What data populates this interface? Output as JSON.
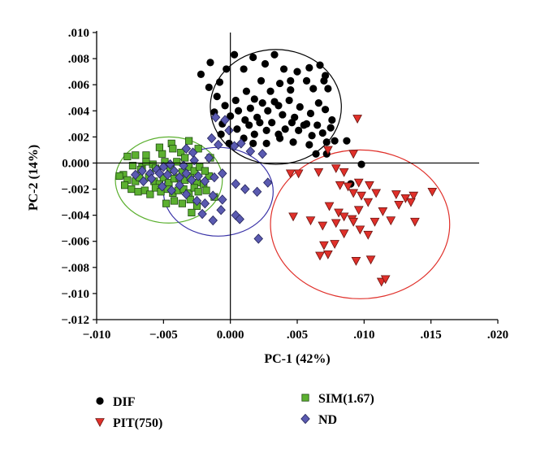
{
  "chart_data": {
    "type": "scatter",
    "xlabel": "PC-1 (42%)",
    "ylabel": "PC-2 (14%)",
    "xlim": [
      -0.01,
      0.02
    ],
    "ylim": [
      -0.012,
      0.01
    ],
    "x_ticks": [
      -0.01,
      -0.005,
      0.0,
      0.005,
      0.01,
      0.015,
      0.02
    ],
    "x_tick_labels": [
      "−.010",
      "−.005",
      "0.000",
      ".005",
      ".010",
      ".015",
      ".020"
    ],
    "y_ticks": [
      0.01,
      0.008,
      0.006,
      0.004,
      0.002,
      0.0,
      -0.002,
      -0.004,
      -0.006,
      -0.008,
      -0.01,
      -0.012
    ],
    "y_tick_labels": [
      ".010",
      ".008",
      ".006",
      ".004",
      ".002",
      "0.000",
      "−.002",
      "−.004",
      "−.006",
      "−.008",
      "−.010",
      "−.012"
    ],
    "grid": false,
    "legend": "bottom",
    "series": [
      {
        "name": "DIF",
        "marker": "circle",
        "color": "#000000",
        "points": [
          [
            -0.0022,
            0.0068
          ],
          [
            -0.0015,
            0.0077
          ],
          [
            -0.0008,
            0.0062
          ],
          [
            -0.0003,
            0.0072
          ],
          [
            0.0003,
            0.0083
          ],
          [
            0.001,
            0.0072
          ],
          [
            0.0017,
            0.0081
          ],
          [
            0.0026,
            0.0076
          ],
          [
            0.0033,
            0.0083
          ],
          [
            0.004,
            0.0072
          ],
          [
            0.0045,
            0.0063
          ],
          [
            0.005,
            0.007
          ],
          [
            0.0059,
            0.0073
          ],
          [
            0.0067,
            0.0075
          ],
          [
            0.0071,
            0.0067
          ],
          [
            -0.0016,
            0.0058
          ],
          [
            -0.001,
            0.0051
          ],
          [
            -0.0004,
            0.0044
          ],
          [
            0.0004,
            0.0048
          ],
          [
            0.0012,
            0.0055
          ],
          [
            0.0018,
            0.0049
          ],
          [
            0.0023,
            0.0063
          ],
          [
            0.003,
            0.0055
          ],
          [
            0.0037,
            0.0061
          ],
          [
            0.0045,
            0.0056
          ],
          [
            0.0057,
            0.0063
          ],
          [
            0.0062,
            0.0057
          ],
          [
            0.007,
            0.0063
          ],
          [
            0.0073,
            0.0057
          ],
          [
            -0.0012,
            0.0039
          ],
          [
            -0.0006,
            0.003
          ],
          [
            0.0,
            0.0036
          ],
          [
            0.0006,
            0.004
          ],
          [
            0.0011,
            0.0033
          ],
          [
            0.0015,
            0.0042
          ],
          [
            0.002,
            0.0035
          ],
          [
            0.0024,
            0.0046
          ],
          [
            0.0028,
            0.004
          ],
          [
            0.0033,
            0.0047
          ],
          [
            0.0036,
            0.0044
          ],
          [
            0.0039,
            0.0037
          ],
          [
            0.0044,
            0.0048
          ],
          [
            0.0048,
            0.0035
          ],
          [
            0.0052,
            0.0043
          ],
          [
            0.0055,
            0.0029
          ],
          [
            0.006,
            0.0038
          ],
          [
            0.0066,
            0.0046
          ],
          [
            0.0071,
            0.0041
          ],
          [
            0.0076,
            0.0033
          ],
          [
            -0.0007,
            0.0022
          ],
          [
            -0.0001,
            0.0015
          ],
          [
            0.0005,
            0.0026
          ],
          [
            0.001,
            0.0019
          ],
          [
            0.0014,
            0.0029
          ],
          [
            0.0018,
            0.0022
          ],
          [
            0.0022,
            0.0031
          ],
          [
            0.0027,
            0.0025
          ],
          [
            0.0031,
            0.0031
          ],
          [
            0.0036,
            0.0022
          ],
          [
            0.0041,
            0.0026
          ],
          [
            0.0046,
            0.0031
          ],
          [
            0.0051,
            0.0025
          ],
          [
            0.0057,
            0.003
          ],
          [
            0.0061,
            0.0021
          ],
          [
            0.0065,
            0.0029
          ],
          [
            0.0069,
            0.0023
          ],
          [
            0.0075,
            0.0027
          ],
          [
            0.0017,
            0.0015
          ],
          [
            0.0027,
            0.0015
          ],
          [
            0.0037,
            0.0019
          ],
          [
            0.0047,
            0.0016
          ],
          [
            0.0059,
            0.0014
          ],
          [
            0.0072,
            0.0016
          ],
          [
            0.0078,
            0.0017
          ],
          [
            0.0087,
            0.0017
          ],
          [
            0.0064,
            0.0007
          ],
          [
            0.0072,
            0.0007
          ],
          [
            0.009,
            -0.0016
          ],
          [
            0.0098,
            -0.0001
          ]
        ]
      },
      {
        "name": "PIT(750)",
        "marker": "triangle-down",
        "color": "#e0302a",
        "points": [
          [
            0.0095,
            0.0034
          ],
          [
            0.0073,
            0.001
          ],
          [
            0.0045,
            -0.0008
          ],
          [
            0.0051,
            -0.0008
          ],
          [
            0.0066,
            -0.0007
          ],
          [
            0.0079,
            -0.0004
          ],
          [
            0.0085,
            -0.0007
          ],
          [
            0.0092,
            0.0007
          ],
          [
            0.0096,
            -0.0015
          ],
          [
            0.0082,
            -0.0017
          ],
          [
            0.0088,
            -0.0018
          ],
          [
            0.0092,
            -0.0023
          ],
          [
            0.0098,
            -0.0025
          ],
          [
            0.0104,
            -0.0017
          ],
          [
            0.0109,
            -0.0023
          ],
          [
            0.0124,
            -0.0024
          ],
          [
            0.0131,
            -0.0027
          ],
          [
            0.0137,
            -0.0025
          ],
          [
            0.0151,
            -0.0022
          ],
          [
            0.0135,
            -0.003
          ],
          [
            0.0126,
            -0.0032
          ],
          [
            0.0074,
            -0.0033
          ],
          [
            0.0081,
            -0.0038
          ],
          [
            0.0085,
            -0.0041
          ],
          [
            0.0091,
            -0.0043
          ],
          [
            0.0096,
            -0.0036
          ],
          [
            0.0103,
            -0.003
          ],
          [
            0.0108,
            -0.0045
          ],
          [
            0.012,
            -0.0044
          ],
          [
            0.0138,
            -0.0045
          ],
          [
            0.0114,
            -0.0037
          ],
          [
            0.006,
            -0.0044
          ],
          [
            0.0069,
            -0.0048
          ],
          [
            0.0079,
            -0.0046
          ],
          [
            0.0085,
            -0.0054
          ],
          [
            0.0092,
            -0.0045
          ],
          [
            0.0097,
            -0.0051
          ],
          [
            0.0103,
            -0.0055
          ],
          [
            0.0047,
            -0.0041
          ],
          [
            0.007,
            -0.0063
          ],
          [
            0.0078,
            -0.0062
          ],
          [
            0.0067,
            -0.0071
          ],
          [
            0.0073,
            -0.007
          ],
          [
            0.0094,
            -0.0075
          ],
          [
            0.0105,
            -0.0074
          ],
          [
            0.0113,
            -0.0091
          ],
          [
            0.0116,
            -0.0089
          ]
        ]
      },
      {
        "name": "SIM(1.67)",
        "marker": "square",
        "color": "#5cb030",
        "points": [
          [
            -0.0031,
            0.0017
          ],
          [
            -0.0044,
            0.0015
          ],
          [
            -0.0037,
            0.0008
          ],
          [
            -0.0051,
            0.0007
          ],
          [
            -0.0063,
            0.0006
          ],
          [
            -0.0071,
            0.0006
          ],
          [
            -0.0077,
            0.0005
          ],
          [
            -0.0058,
            -0.0001
          ],
          [
            -0.0066,
            -0.0003
          ],
          [
            -0.0073,
            -0.0002
          ],
          [
            -0.008,
            -0.0009
          ],
          [
            -0.0083,
            -0.001
          ],
          [
            -0.0077,
            -0.0013
          ],
          [
            -0.0071,
            -0.0014
          ],
          [
            -0.0068,
            -0.0011
          ],
          [
            -0.0061,
            -0.0011
          ],
          [
            -0.0057,
            -0.0014
          ],
          [
            -0.0053,
            -0.0016
          ],
          [
            -0.005,
            -0.0011
          ],
          [
            -0.0046,
            -0.0015
          ],
          [
            -0.0042,
            -0.0012
          ],
          [
            -0.0038,
            -0.0011
          ],
          [
            -0.0034,
            -0.0013
          ],
          [
            -0.003,
            -0.0011
          ],
          [
            -0.0025,
            -0.0015
          ],
          [
            -0.002,
            -0.0016
          ],
          [
            -0.0016,
            -0.001
          ],
          [
            -0.0079,
            -0.0017
          ],
          [
            -0.0074,
            -0.002
          ],
          [
            -0.0069,
            -0.0022
          ],
          [
            -0.0064,
            -0.0021
          ],
          [
            -0.006,
            -0.0024
          ],
          [
            -0.0056,
            -0.0019
          ],
          [
            -0.0052,
            -0.0022
          ],
          [
            -0.0047,
            -0.002
          ],
          [
            -0.0043,
            -0.0023
          ],
          [
            -0.0039,
            -0.0021
          ],
          [
            -0.0035,
            -0.002
          ],
          [
            -0.0031,
            -0.0023
          ],
          [
            -0.0027,
            -0.0019
          ],
          [
            -0.0024,
            -0.0022
          ],
          [
            -0.0063,
            0.0001
          ],
          [
            -0.0056,
            -0.0004
          ],
          [
            -0.0049,
            0.0001
          ],
          [
            -0.0045,
            -0.0005
          ],
          [
            -0.004,
            0.0001
          ],
          [
            -0.0036,
            -0.0007
          ],
          [
            -0.0031,
            -0.0003
          ],
          [
            -0.0027,
            -0.0006
          ],
          [
            -0.0023,
            -0.0003
          ],
          [
            -0.0019,
            -0.0006
          ],
          [
            -0.0015,
            0.0004
          ],
          [
            -0.0048,
            -0.0031
          ],
          [
            -0.0042,
            -0.0029
          ],
          [
            -0.0036,
            -0.0031
          ],
          [
            -0.003,
            -0.0028
          ],
          [
            -0.0025,
            -0.0033
          ],
          [
            -0.0012,
            -0.0026
          ],
          [
            -0.0018,
            -0.0021
          ],
          [
            -0.0029,
            -0.0038
          ],
          [
            -0.0053,
            0.0012
          ],
          [
            -0.0043,
            0.0011
          ],
          [
            -0.0034,
            0.0004
          ],
          [
            -0.0067,
            -0.0005
          ],
          [
            -0.0024,
            0.0011
          ]
        ]
      },
      {
        "name": "ND",
        "marker": "diamond",
        "color": "#5a5ab0",
        "points": [
          [
            -0.0011,
            0.0035
          ],
          [
            -0.0004,
            0.0033
          ],
          [
            -0.0001,
            0.0025
          ],
          [
            -0.0014,
            0.0019
          ],
          [
            -0.0009,
            0.0014
          ],
          [
            0.0003,
            0.0013
          ],
          [
            0.0008,
            0.0015
          ],
          [
            0.0015,
            0.0009
          ],
          [
            0.0024,
            0.0007
          ],
          [
            0.0028,
            -0.0015
          ],
          [
            0.002,
            -0.0022
          ],
          [
            -0.0028,
            0.0008
          ],
          [
            -0.0033,
            0.0011
          ],
          [
            -0.0045,
            -0.0001
          ],
          [
            -0.005,
            -0.0003
          ],
          [
            -0.0055,
            -0.0005
          ],
          [
            -0.006,
            -0.0008
          ],
          [
            -0.0066,
            -0.0006
          ],
          [
            -0.0071,
            -0.0009
          ],
          [
            -0.0065,
            -0.0014
          ],
          [
            -0.0059,
            -0.0012
          ],
          [
            -0.0053,
            -0.0008
          ],
          [
            -0.0047,
            -0.0009
          ],
          [
            -0.0042,
            -0.0006
          ],
          [
            -0.0038,
            -0.0011
          ],
          [
            -0.0033,
            -0.0008
          ],
          [
            -0.0029,
            -0.0013
          ],
          [
            -0.0024,
            -0.001
          ],
          [
            -0.0019,
            -0.0014
          ],
          [
            -0.0012,
            -0.0011
          ],
          [
            -0.0006,
            -0.0008
          ],
          [
            0.0004,
            -0.0016
          ],
          [
            0.0011,
            -0.002
          ],
          [
            -0.0013,
            -0.0025
          ],
          [
            -0.0006,
            -0.0028
          ],
          [
            -0.0019,
            -0.0031
          ],
          [
            -0.0025,
            -0.0029
          ],
          [
            -0.0007,
            -0.0036
          ],
          [
            -0.0013,
            -0.0044
          ],
          [
            0.0004,
            -0.004
          ],
          [
            0.0007,
            -0.0043
          ],
          [
            -0.0021,
            -0.0039
          ],
          [
            0.0021,
            -0.0058
          ],
          [
            -0.0038,
            -0.0017
          ],
          [
            -0.0044,
            -0.0021
          ],
          [
            -0.0051,
            -0.0018
          ],
          [
            -0.0033,
            -0.0024
          ],
          [
            -0.0027,
            0.0002
          ],
          [
            -0.0035,
            -0.0002
          ],
          [
            -0.0016,
            0.0004
          ]
        ]
      }
    ],
    "ellipses": [
      {
        "group": "DIF",
        "color": "#000000",
        "center": [
          0.0034,
          0.0043
        ],
        "radii": [
          0.0049,
          0.0044
        ]
      },
      {
        "group": "PIT(750)",
        "color": "#e0302a",
        "center": [
          0.0097,
          -0.0047
        ],
        "radii": [
          0.0067,
          0.0057
        ]
      },
      {
        "group": "SIM(1.67)",
        "color": "#5cb030",
        "center": [
          -0.0046,
          -0.0013
        ],
        "radii": [
          0.004,
          0.0033
        ]
      },
      {
        "group": "ND",
        "color": "#3b34a8",
        "center": [
          -0.0009,
          -0.0022
        ],
        "radii": [
          0.0041,
          0.0034
        ]
      }
    ]
  },
  "legend": {
    "items": [
      {
        "label": "DIF",
        "marker": "circle",
        "color": "#000000"
      },
      {
        "label": "PIT(750)",
        "marker": "triangle-down",
        "color": "#e0302a"
      },
      {
        "label": "SIM(1.67)",
        "marker": "square",
        "color": "#5cb030"
      },
      {
        "label": "ND",
        "marker": "diamond",
        "color": "#5a5ab0"
      }
    ]
  }
}
